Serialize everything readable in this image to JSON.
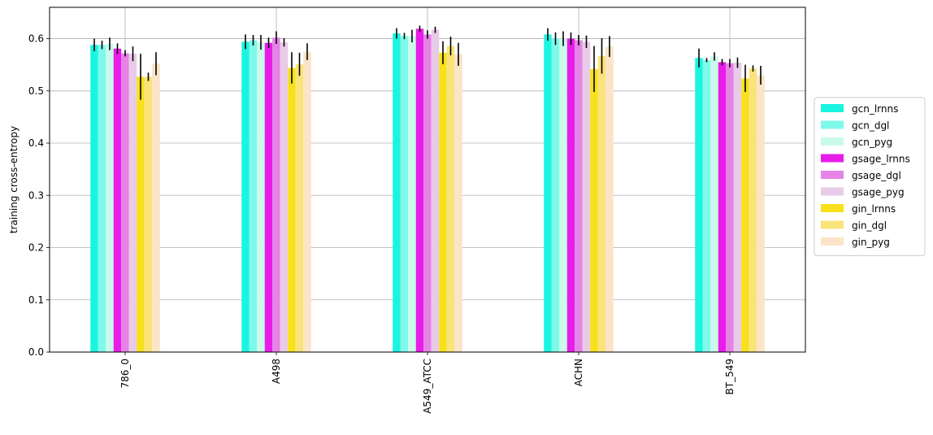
{
  "chart_data": {
    "type": "bar",
    "title": "",
    "xlabel": "",
    "ylabel": "training cross-entropy",
    "ylim": [
      0.0,
      0.66
    ],
    "yticks": [
      0.0,
      0.1,
      0.2,
      0.3,
      0.4,
      0.5,
      0.6
    ],
    "ytick_labels": [
      "0.0",
      "0.1",
      "0.2",
      "0.3",
      "0.4",
      "0.5",
      "0.6"
    ],
    "grid": true,
    "legend_position": "right",
    "categories": [
      "786_0",
      "A498",
      "A549_ATCC",
      "ACHN",
      "BT_549"
    ],
    "series": [
      {
        "name": "gcn_lrnns",
        "color": "#19f5e1",
        "values": [
          0.588,
          0.594,
          0.61,
          0.608,
          0.563
        ],
        "errors": [
          0.012,
          0.014,
          0.01,
          0.012,
          0.018
        ]
      },
      {
        "name": "gcn_dgl",
        "color": "#7ff9ea",
        "values": [
          0.588,
          0.597,
          0.605,
          0.6,
          0.559
        ],
        "errors": [
          0.008,
          0.01,
          0.006,
          0.012,
          0.004
        ]
      },
      {
        "name": "gcn_pyg",
        "color": "#c9faea",
        "values": [
          0.59,
          0.593,
          0.605,
          0.6,
          0.566
        ],
        "errors": [
          0.012,
          0.014,
          0.012,
          0.014,
          0.008
        ]
      },
      {
        "name": "gsage_lrnns",
        "color": "#e81de8",
        "values": [
          0.581,
          0.592,
          0.619,
          0.6,
          0.555
        ],
        "errors": [
          0.01,
          0.01,
          0.006,
          0.012,
          0.006
        ]
      },
      {
        "name": "gsage_dgl",
        "color": "#e583e6",
        "values": [
          0.572,
          0.602,
          0.608,
          0.597,
          0.553
        ],
        "errors": [
          0.006,
          0.012,
          0.008,
          0.01,
          0.008
        ]
      },
      {
        "name": "gsage_pyg",
        "color": "#e8cbe6",
        "values": [
          0.571,
          0.593,
          0.617,
          0.594,
          0.554
        ],
        "errors": [
          0.014,
          0.008,
          0.006,
          0.012,
          0.01
        ]
      },
      {
        "name": "gin_lrnns",
        "color": "#f6e11b",
        "values": [
          0.527,
          0.544,
          0.573,
          0.542,
          0.524
        ],
        "errors": [
          0.044,
          0.03,
          0.022,
          0.044,
          0.026
        ]
      },
      {
        "name": "gin_dgl",
        "color": "#fbe37b",
        "values": [
          0.527,
          0.551,
          0.586,
          0.567,
          0.543
        ],
        "errors": [
          0.008,
          0.022,
          0.018,
          0.034,
          0.006
        ]
      },
      {
        "name": "gin_pyg",
        "color": "#fbe4c7",
        "values": [
          0.552,
          0.575,
          0.57,
          0.585,
          0.53
        ],
        "errors": [
          0.022,
          0.016,
          0.022,
          0.02,
          0.018
        ]
      }
    ]
  }
}
